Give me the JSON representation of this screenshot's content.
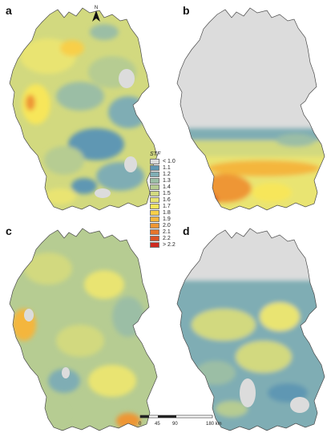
{
  "panels": [
    {
      "label": "a",
      "variant": "a"
    },
    {
      "label": "b",
      "variant": "b"
    },
    {
      "label": "c",
      "variant": "c"
    },
    {
      "label": "d",
      "variant": "d"
    }
  ],
  "legend": {
    "title": "STF",
    "entries": [
      {
        "label": "< 1.0",
        "color": "#dcdcdc"
      },
      {
        "label": "1.1",
        "color": "#5f97b3"
      },
      {
        "label": "1.2",
        "color": "#7fadb4"
      },
      {
        "label": "1.3",
        "color": "#9bbea5"
      },
      {
        "label": "1.4",
        "color": "#b6cc92"
      },
      {
        "label": "1.5",
        "color": "#d2d97f"
      },
      {
        "label": "1.6",
        "color": "#e9e472"
      },
      {
        "label": "1.7",
        "color": "#f7e65a"
      },
      {
        "label": "1.8",
        "color": "#f8cf49"
      },
      {
        "label": "1.9",
        "color": "#f4b63e"
      },
      {
        "label": "2.0",
        "color": "#ee9634"
      },
      {
        "label": "2.1",
        "color": "#e6762c"
      },
      {
        "label": "2.2",
        "color": "#db5226"
      },
      {
        "label": "> 2.2",
        "color": "#cf2a1f"
      }
    ]
  },
  "scalebar": {
    "ticks": [
      "0",
      "45",
      "90",
      "180 km"
    ]
  },
  "north_arrow": {
    "label": "N"
  },
  "icons": {
    "north_arrow": "north-arrow-icon"
  }
}
